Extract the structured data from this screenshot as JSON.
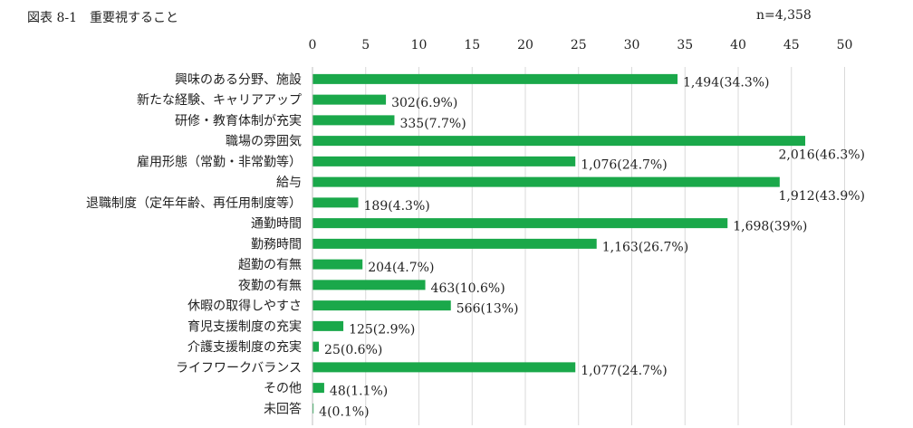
{
  "figure": {
    "title": "図表 8-1　重要視すること",
    "n_label": "n=4,358"
  },
  "colors": {
    "bar": "#1aa84a",
    "grid": "#d9d9d9"
  },
  "chart_data": {
    "type": "bar",
    "orientation": "horizontal",
    "title": "",
    "xlim": [
      0,
      50
    ],
    "x_ticks": [
      "0",
      "5",
      "10",
      "15",
      "20",
      "25",
      "30",
      "35",
      "40",
      "45",
      "50"
    ],
    "x_axis_position": "top",
    "grid": true,
    "legend": "none",
    "categories": [
      "興味のある分野、施設",
      "新たな経験、キャリアアップ",
      "研修・教育体制が充実",
      "職場の雰囲気",
      "雇用形態（常勤・非常勤等）",
      "給与",
      "退職制度（定年年齢、再任用制度等）",
      "通勤時間",
      "勤務時間",
      "超勤の有無",
      "夜勤の有無",
      "休暇の取得しやすさ",
      "育児支援制度の充実",
      "介護支援制度の充実",
      "ライフワークバランス",
      "その他",
      "未回答"
    ],
    "values": [
      34.3,
      6.9,
      7.7,
      46.3,
      24.7,
      43.9,
      4.3,
      39,
      26.7,
      4.7,
      10.6,
      13,
      2.9,
      0.6,
      24.7,
      1.1,
      0.1
    ],
    "data_labels": [
      "1,494(34.3%)",
      "302(6.9%)",
      "335(7.7%)",
      "2,016(46.3%)",
      "1,076(24.7%)",
      "1,912(43.9%)",
      "189(4.3%)",
      "1,698(39%)",
      "1,163(26.7%)",
      "204(4.7%)",
      "463(10.6%)",
      "566(13%)",
      "125(2.9%)",
      "25(0.6%)",
      "1,077(24.7%)",
      "48(1.1%)",
      "4(0.1%)"
    ]
  }
}
